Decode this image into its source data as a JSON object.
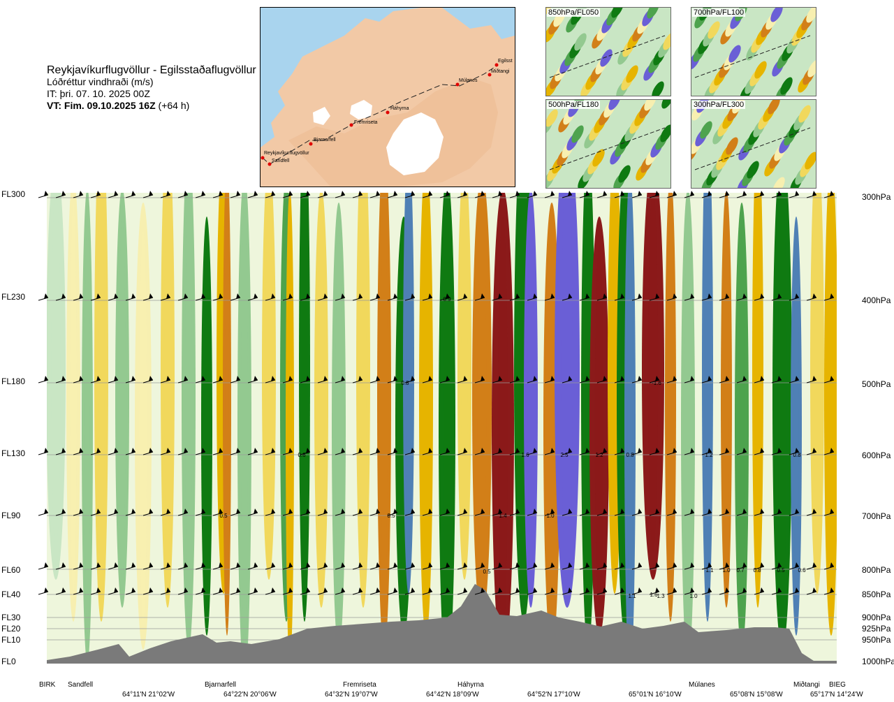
{
  "header": {
    "route": "Reykjavíkurflugvöllur - Egilsstaðaflugvöllur",
    "variable": "Lóðréttur vindhraði (m/s)",
    "issue_time": "IT: þri. 07. 10. 2025 00Z",
    "valid_label": "VT: Fim. 09.10.2025 16Z",
    "valid_offset": " (+64 h)"
  },
  "map": {
    "stations": [
      "Reykjavíkurflugvöllur",
      "Sandfell",
      "Bjarnarfell",
      "Fremriseta",
      "Háhyrna",
      "Múlanes",
      "Miðtangi",
      "Egilsst"
    ]
  },
  "thumbnails": [
    {
      "label": "850hPa/FL050"
    },
    {
      "label": "700hPa/FL100"
    },
    {
      "label": "500hPa/FL180"
    },
    {
      "label": "300hPa/FL300"
    }
  ],
  "chart_data": {
    "type": "heatmap",
    "title": "Lóðréttur vindhraði (m/s)",
    "y_left_ticks": [
      "FL300",
      "FL230",
      "FL180",
      "FL130",
      "FL90",
      "FL60",
      "FL40",
      "FL30",
      "FL20",
      "FL10",
      "FL0"
    ],
    "y_right_ticks": [
      "300hPa",
      "400hPa",
      "500hPa",
      "600hPa",
      "700hPa",
      "800hPa",
      "850hPa",
      "900hPa",
      "925hPa",
      "950hPa",
      "1000hPa"
    ],
    "stations": [
      "BIRK",
      "Sandfell",
      "Bjarnarfell",
      "Fremriseta",
      "Háhyrna",
      "Múlanes",
      "Miðtangi",
      "BIEG"
    ],
    "coords": [
      "64°11'N 21°02'W",
      "64°22'N 20°06'W",
      "64°32'N 19°07'W",
      "64°42'N 18°09'W",
      "64°52'N 17°10'W",
      "65°01'N 16°10'W",
      "65°08'N 15°08'W",
      "65°17'N 14°24'W"
    ],
    "colors": {
      "strong_up": "#6a5fd6",
      "up_mid": "#4f80b5",
      "up_dark": "#0f7a12",
      "up": "#4ea34e",
      "up_light": "#93c990",
      "up_pale": "#c9e6c4",
      "neutral": "#eef6dc",
      "down_pale": "#f7efb0",
      "down_light": "#f1d85c",
      "down": "#e6b400",
      "down_mid": "#d27f18",
      "down_dark": "#8e3a12",
      "strong_down": "#8b1a1a",
      "terrain": "#7a7a7a"
    },
    "annotations": [
      "0.5",
      "0.8",
      "0.6",
      "0.5",
      "0.5",
      "1.4",
      "1.6",
      "0.9",
      "2.5",
      "1.2",
      "0.8",
      "1.2",
      "0.8",
      "1.1",
      "1.6",
      "-1.6",
      "1.0",
      "0.7",
      "0.8",
      "0.5",
      "0.6",
      "1.1",
      "1.3",
      "1.0",
      "1.0"
    ]
  }
}
